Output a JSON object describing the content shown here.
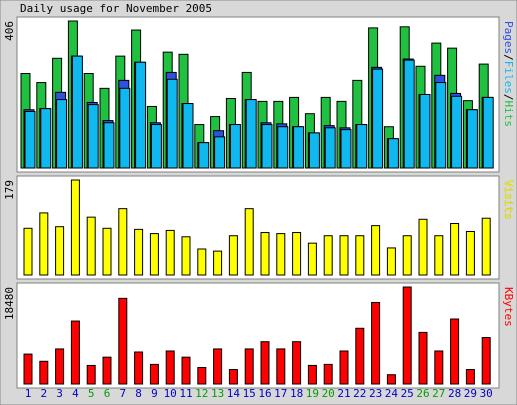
{
  "title": "Daily usage for November 2005",
  "categories": [
    "1",
    "2",
    "3",
    "4",
    "5",
    "6",
    "7",
    "8",
    "9",
    "10",
    "11",
    "12",
    "13",
    "14",
    "15",
    "16",
    "17",
    "18",
    "19",
    "20",
    "21",
    "22",
    "23",
    "24",
    "25",
    "26",
    "27",
    "28",
    "29",
    "30"
  ],
  "category_colors": [
    "#0000cc",
    "#0000cc",
    "#0000cc",
    "#0000cc",
    "#00a000",
    "#00a000",
    "#0000cc",
    "#0000cc",
    "#0000cc",
    "#0000cc",
    "#0000cc",
    "#00a000",
    "#00a000",
    "#0000cc",
    "#0000cc",
    "#0000cc",
    "#0000cc",
    "#0000cc",
    "#00a000",
    "#00a000",
    "#0000cc",
    "#0000cc",
    "#0000cc",
    "#0000cc",
    "#0000cc",
    "#00a000",
    "#00a000",
    "#0000cc",
    "#0000cc",
    "#0000cc"
  ],
  "chart_data": [
    {
      "type": "bar",
      "ylim": [
        0,
        406
      ],
      "yticks": [
        406
      ],
      "legend_separator": "/",
      "series": [
        {
          "name": "Hits",
          "color": "#20c040",
          "values": [
            261,
            236,
            303,
            406,
            261,
            220,
            309,
            381,
            170,
            320,
            314,
            120,
            142,
            192,
            264,
            184,
            184,
            195,
            150,
            195,
            184,
            242,
            387,
            114,
            390,
            281,
            345,
            331,
            186,
            287
          ]
        },
        {
          "name": "Pages",
          "color": "#3050e0",
          "values": [
            161,
            164,
            209,
            309,
            181,
            131,
            242,
            292,
            125,
            264,
            178,
            70,
            103,
            120,
            189,
            125,
            122,
            114,
            97,
            117,
            111,
            120,
            278,
            81,
            301,
            203,
            256,
            206,
            161,
            195
          ]
        },
        {
          "name": "Files",
          "color": "#10b8f0",
          "values": [
            156,
            164,
            189,
            309,
            175,
            125,
            220,
            292,
            120,
            245,
            178,
            70,
            86,
            120,
            189,
            120,
            114,
            114,
            97,
            111,
            106,
            120,
            273,
            81,
            298,
            203,
            236,
            198,
            161,
            195
          ]
        }
      ],
      "legend_order": [
        1,
        2,
        0
      ]
    },
    {
      "type": "bar",
      "ylim": [
        0,
        179
      ],
      "yticks": [
        179
      ],
      "series": [
        {
          "name": "Visits",
          "color": "#ffff00",
          "values": [
            88,
            117,
            91,
            179,
            109,
            88,
            125,
            86,
            78,
            84,
            72,
            49,
            45,
            74,
            125,
            80,
            78,
            80,
            60,
            74,
            74,
            74,
            93,
            51,
            74,
            105,
            74,
            97,
            82,
            107
          ]
        }
      ]
    },
    {
      "type": "bar",
      "ylim": [
        0,
        18480
      ],
      "yticks": [
        18480
      ],
      "series": [
        {
          "name": "KBytes",
          "color": "#ff0000",
          "values": [
            5701,
            4325,
            6684,
            11992,
            3539,
            5112,
            16318,
            6095,
            3735,
            6291,
            5112,
            3146,
            6684,
            2752,
            6684,
            8061,
            6684,
            8061,
            3539,
            3735,
            6291,
            10616,
            15531,
            1769,
            18480,
            9830,
            6291,
            12385,
            2752,
            8847
          ]
        }
      ]
    }
  ]
}
